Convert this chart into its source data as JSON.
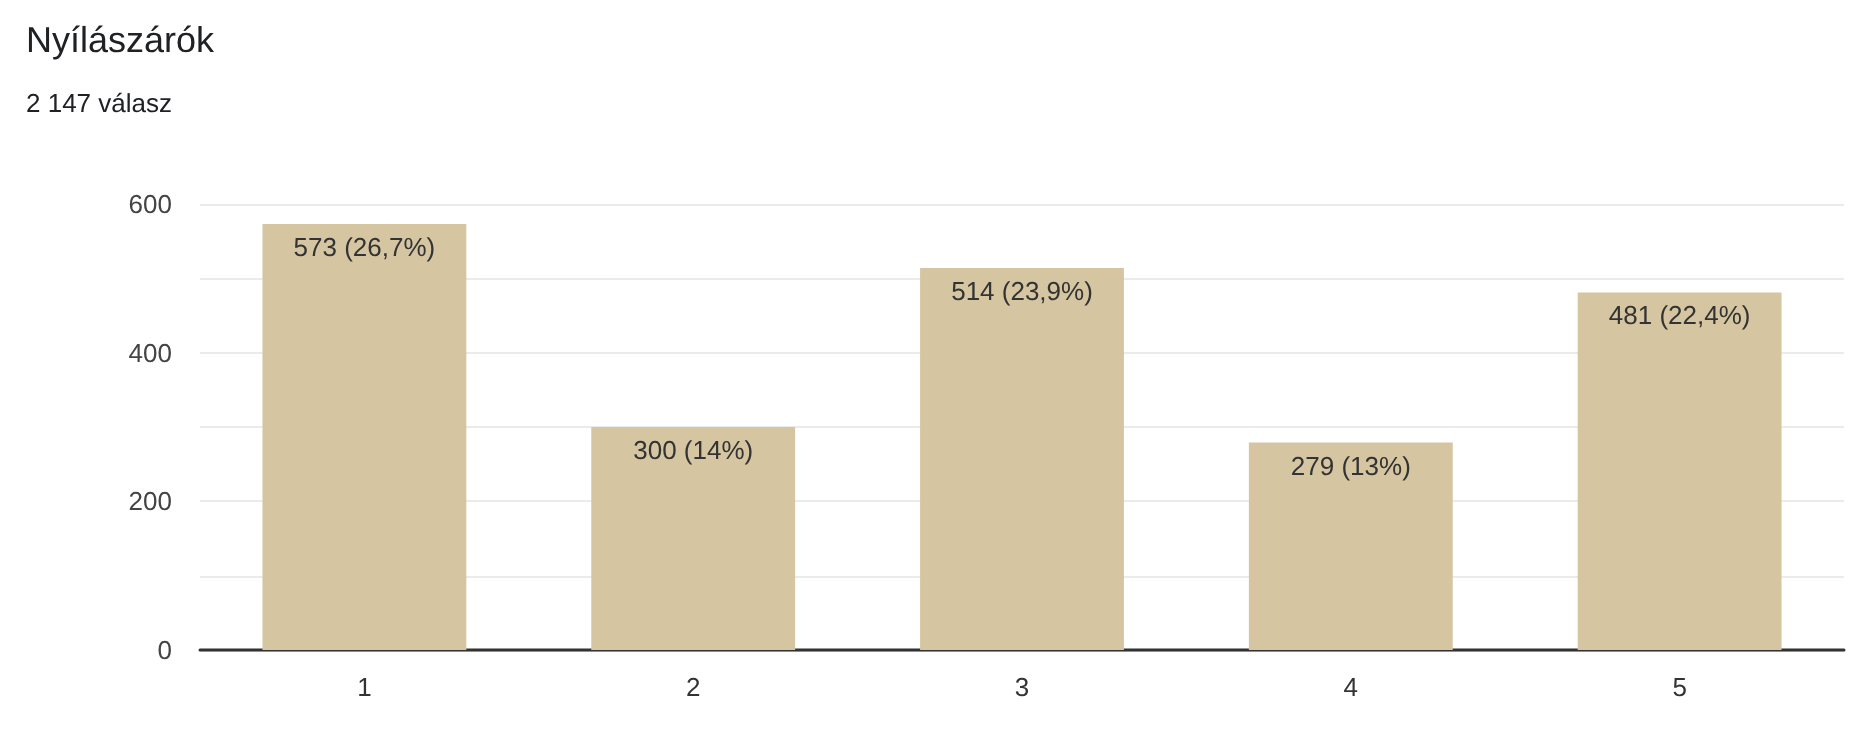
{
  "chart_data": {
    "type": "bar",
    "title": "Nyílászárók",
    "subtitle": "2 147 válasz",
    "categories": [
      "1",
      "2",
      "3",
      "4",
      "5"
    ],
    "values": [
      573,
      300,
      514,
      279,
      481
    ],
    "value_labels": [
      "573 (26,7%)",
      "300 (14%)",
      "514 (23,9%)",
      "279 (13%)",
      "481 (22,4%)"
    ],
    "color": "#d5c5a1",
    "ylim": [
      0,
      600
    ],
    "yticks": [
      0,
      {
        "value": 100,
        "label": null
      },
      200,
      {
        "value": 300,
        "label": null
      },
      400,
      {
        "value": 500,
        "label": null
      },
      600
    ],
    "grid": "y"
  }
}
